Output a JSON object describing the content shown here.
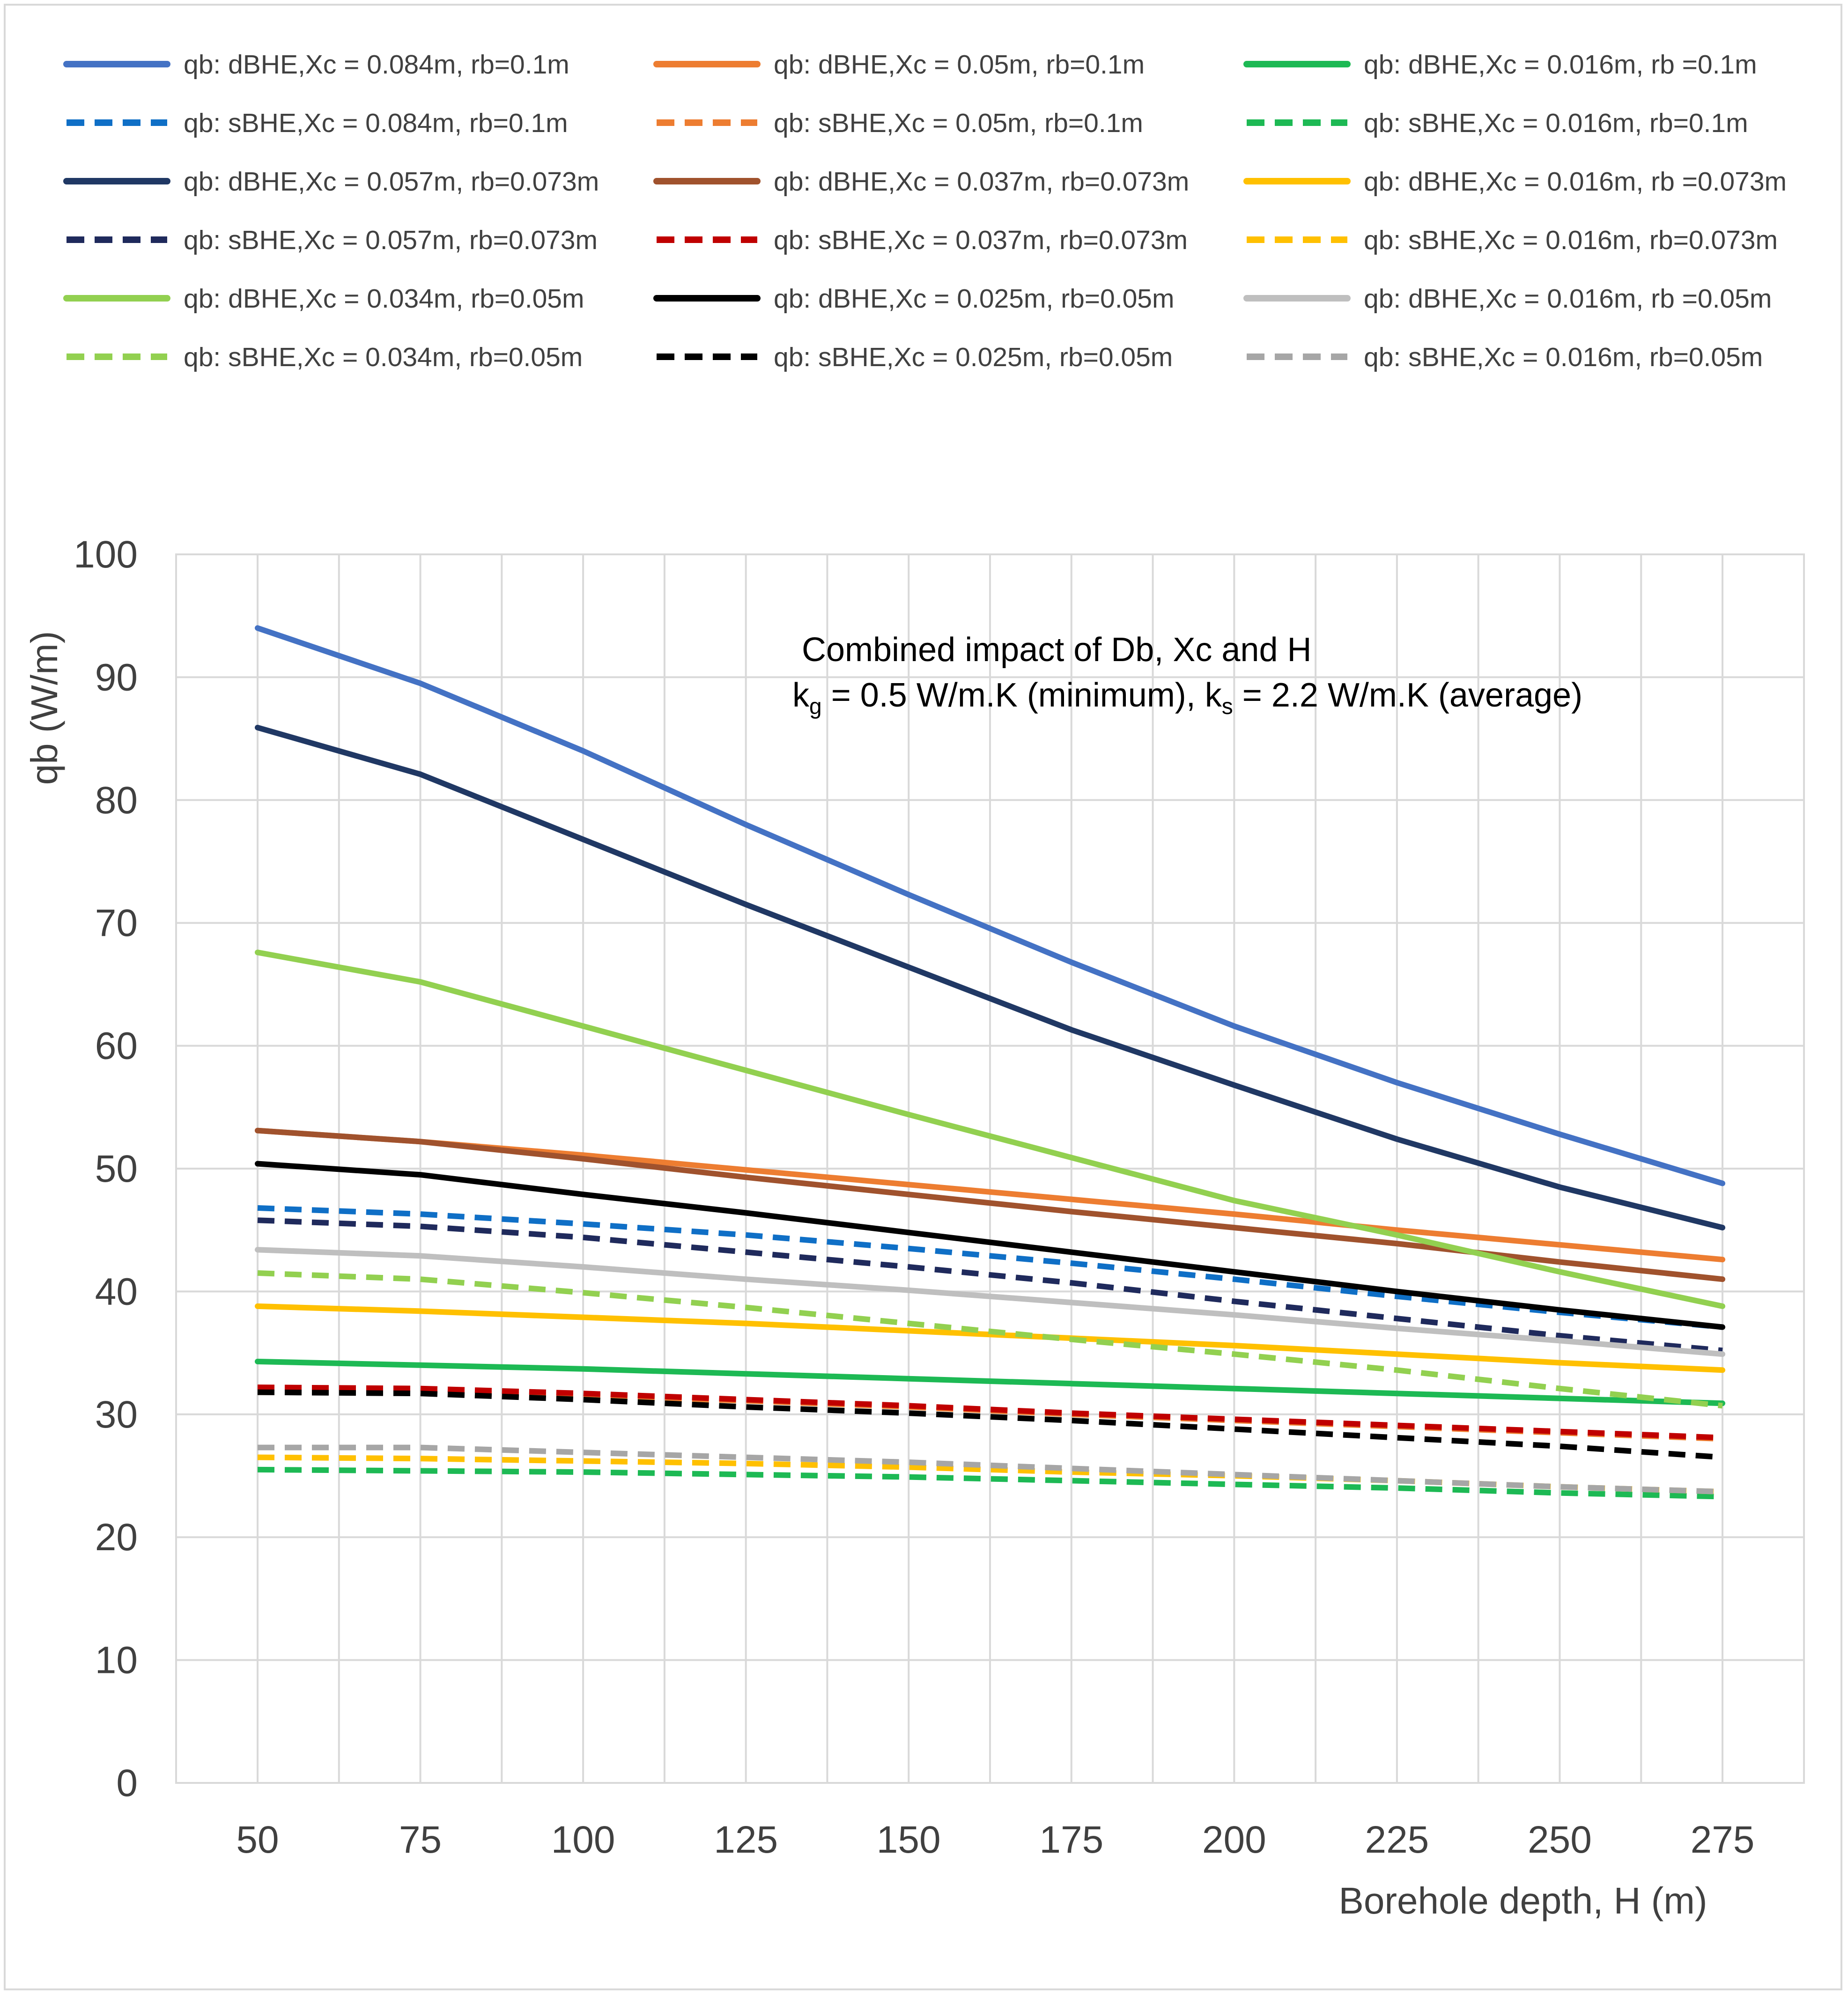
{
  "chart_data": {
    "type": "line",
    "xlabel": "Borehole depth, H (m)",
    "ylabel": "qb (W/m)",
    "xlim": [
      50,
      275
    ],
    "ylim": [
      0,
      100
    ],
    "x_ticks": [
      50,
      75,
      100,
      125,
      150,
      175,
      200,
      225,
      250,
      275
    ],
    "y_ticks": [
      0,
      10,
      20,
      30,
      40,
      50,
      60,
      70,
      80,
      90,
      100
    ],
    "grid": true,
    "legend_position": "top",
    "annotation": {
      "line1": "Combined impact of Db, Xc  and H",
      "kg_main": "k",
      "kg_sub": "g",
      "kg_rest": " = 0.5 W/m.K (minimum), k",
      "ks_sub": "s",
      "ks_rest": " = 2.2 W/m.K (average)"
    },
    "x": [
      50,
      75,
      100,
      125,
      150,
      175,
      200,
      225,
      250,
      275
    ],
    "series": [
      {
        "name": "qb: dBHE,Xc = 0.084m, rb=0.1m",
        "color": "#4472C4",
        "dashed": false,
        "values": [
          94.0,
          89.5,
          84.0,
          78.0,
          72.3,
          66.8,
          61.6,
          57.0,
          52.8,
          48.8
        ]
      },
      {
        "name": "qb: dBHE,Xc = 0.05m, rb=0.1m",
        "color": "#ED7D31",
        "dashed": false,
        "values": [
          53.1,
          52.2,
          51.1,
          49.9,
          48.7,
          47.5,
          46.3,
          45.0,
          43.8,
          42.6
        ]
      },
      {
        "name": "qb: dBHE,Xc = 0.016m, rb =0.1m",
        "color": "#1DB954",
        "dashed": false,
        "values": [
          34.3,
          34.0,
          33.7,
          33.3,
          32.9,
          32.5,
          32.1,
          31.7,
          31.3,
          30.9
        ]
      },
      {
        "name": "qb: sBHE,Xc = 0.084m, rb=0.1m",
        "color": "#0F6FC6",
        "dashed": true,
        "values": [
          46.8,
          46.3,
          45.5,
          44.6,
          43.5,
          42.3,
          41.0,
          39.6,
          38.3,
          37.1
        ]
      },
      {
        "name": "qb: sBHE,Xc = 0.05m, rb=0.1m",
        "color": "#ED7D31",
        "dashed": true,
        "values": [
          31.8,
          31.8,
          31.5,
          31.1,
          30.6,
          30.0,
          29.5,
          29.0,
          28.5,
          28.0
        ]
      },
      {
        "name": "qb: sBHE,Xc = 0.016m, rb=0.1m",
        "color": "#1DB954",
        "dashed": true,
        "values": [
          25.5,
          25.4,
          25.3,
          25.1,
          24.9,
          24.6,
          24.3,
          24.0,
          23.6,
          23.3
        ]
      },
      {
        "name": "qb: dBHE,Xc = 0.057m, rb=0.073m",
        "color": "#203864",
        "dashed": false,
        "values": [
          85.9,
          82.1,
          76.8,
          71.5,
          66.4,
          61.3,
          56.8,
          52.4,
          48.5,
          45.2
        ]
      },
      {
        "name": "qb: dBHE,Xc = 0.037m, rb=0.073m",
        "color": "#A0522D",
        "dashed": false,
        "values": [
          53.1,
          52.2,
          50.8,
          49.3,
          47.9,
          46.5,
          45.2,
          43.9,
          42.4,
          41.0
        ]
      },
      {
        "name": "qb: dBHE,Xc = 0.016m, rb =0.073m",
        "color": "#FFC000",
        "dashed": false,
        "values": [
          38.8,
          38.4,
          37.9,
          37.4,
          36.8,
          36.2,
          35.6,
          34.9,
          34.2,
          33.6
        ]
      },
      {
        "name": "qb: sBHE,Xc = 0.057m, rb=0.073m",
        "color": "#1F2A5C",
        "dashed": true,
        "values": [
          45.8,
          45.3,
          44.4,
          43.2,
          42.0,
          40.7,
          39.2,
          37.8,
          36.4,
          35.2
        ]
      },
      {
        "name": "qb: sBHE,Xc = 0.037m, rb=0.073m",
        "color": "#C00000",
        "dashed": true,
        "values": [
          32.2,
          32.1,
          31.7,
          31.2,
          30.7,
          30.1,
          29.6,
          29.1,
          28.6,
          28.1
        ]
      },
      {
        "name": "qb: sBHE,Xc = 0.016m, rb=0.073m",
        "color": "#FFC000",
        "dashed": true,
        "values": [
          26.5,
          26.4,
          26.2,
          26.0,
          25.7,
          25.3,
          25.0,
          24.6,
          24.1,
          23.7
        ]
      },
      {
        "name": "qb: dBHE,Xc = 0.034m, rb=0.05m",
        "color": "#92D050",
        "dashed": false,
        "values": [
          67.6,
          65.2,
          61.6,
          58.0,
          54.4,
          50.9,
          47.4,
          44.6,
          41.6,
          38.8
        ]
      },
      {
        "name": "qb: dBHE,Xc = 0.025m, rb=0.05m",
        "color": "#000000",
        "dashed": false,
        "values": [
          50.4,
          49.5,
          47.9,
          46.4,
          44.8,
          43.2,
          41.6,
          40.0,
          38.5,
          37.1
        ]
      },
      {
        "name": "qb: dBHE,Xc = 0.016m, rb =0.05m",
        "color": "#BFBFBF",
        "dashed": false,
        "values": [
          43.4,
          42.9,
          42.0,
          41.0,
          40.1,
          39.1,
          38.1,
          37.0,
          36.0,
          34.9
        ]
      },
      {
        "name": "qb: sBHE,Xc = 0.034m, rb=0.05m",
        "color": "#92D050",
        "dashed": true,
        "values": [
          41.5,
          41.0,
          39.9,
          38.7,
          37.4,
          36.1,
          34.9,
          33.6,
          32.1,
          30.7
        ]
      },
      {
        "name": "qb: sBHE,Xc = 0.025m, rb=0.05m",
        "color": "#000000",
        "dashed": true,
        "values": [
          31.8,
          31.7,
          31.2,
          30.6,
          30.1,
          29.5,
          28.8,
          28.1,
          27.4,
          26.5
        ]
      },
      {
        "name": "qb: sBHE,Xc = 0.016m, rb=0.05m",
        "color": "#A6A6A6",
        "dashed": true,
        "values": [
          27.3,
          27.3,
          26.9,
          26.5,
          26.1,
          25.6,
          25.1,
          24.6,
          24.1,
          23.7
        ]
      }
    ]
  }
}
